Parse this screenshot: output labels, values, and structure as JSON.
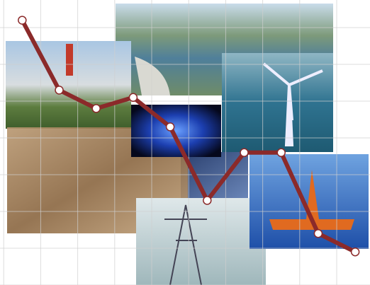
{
  "chart_data": {
    "type": "line",
    "x": [
      0.5,
      1.5,
      2.5,
      3.5,
      4.5,
      5.5,
      6.5,
      7.5,
      8.5,
      9.5
    ],
    "series": [
      {
        "color": "#8b2a2a",
        "values": [
          7.2,
          5.3,
          4.8,
          5.1,
          4.3,
          2.3,
          3.6,
          3.6,
          1.4,
          0.9
        ]
      }
    ],
    "xlim": [
      -0.1,
      9.9
    ],
    "ylim": [
      0,
      7.75
    ],
    "xticks": [
      0,
      1,
      2,
      3,
      4,
      5,
      6,
      7,
      8,
      9
    ],
    "yticks": [
      0,
      1,
      2,
      3,
      4,
      5,
      6,
      7
    ],
    "grid": true
  }
}
